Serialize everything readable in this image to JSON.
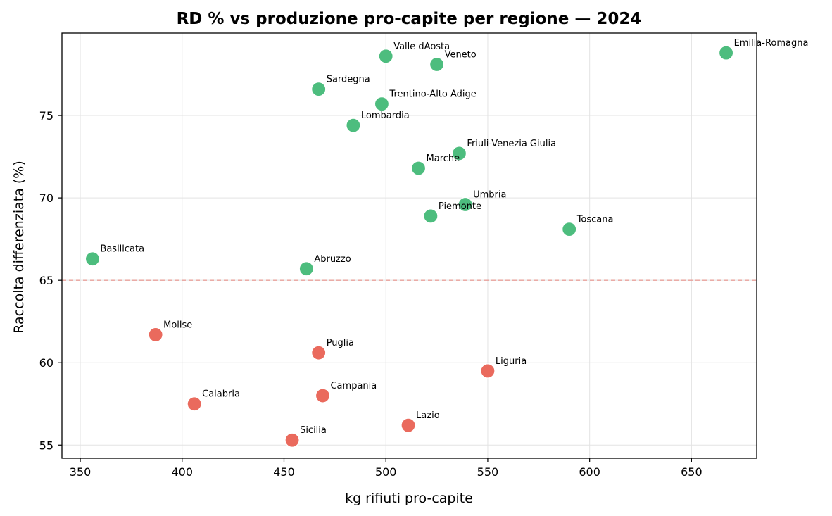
{
  "chart_data": {
    "type": "scatter",
    "title": "RD % vs produzione pro-capite per regione — 2024",
    "xlabel": "kg rifiuti pro-capite",
    "ylabel": "Raccolta differenziata (%)",
    "xlim": [
      341,
      682
    ],
    "ylim": [
      54.2,
      80.0
    ],
    "xticks": [
      350,
      400,
      450,
      500,
      550,
      600,
      650
    ],
    "yticks": [
      55,
      60,
      65,
      70,
      75
    ],
    "grid": true,
    "threshold": 65,
    "colors": {
      "above": "#4dbd7e",
      "below": "#ea6a5d",
      "threshold_line": "#e8a09a",
      "grid": "#e3e3e3"
    },
    "points": [
      {
        "name": "Emilia-Romagna",
        "x": 667,
        "y": 78.8
      },
      {
        "name": "Valle dAosta",
        "x": 500,
        "y": 78.6
      },
      {
        "name": "Veneto",
        "x": 525,
        "y": 78.1
      },
      {
        "name": "Sardegna",
        "x": 467,
        "y": 76.6
      },
      {
        "name": "Trentino-Alto Adige",
        "x": 498,
        "y": 75.7
      },
      {
        "name": "Lombardia",
        "x": 484,
        "y": 74.4
      },
      {
        "name": "Friuli-Venezia Giulia",
        "x": 536,
        "y": 72.7
      },
      {
        "name": "Marche",
        "x": 516,
        "y": 71.8
      },
      {
        "name": "Umbria",
        "x": 539,
        "y": 69.6
      },
      {
        "name": "Piemonte",
        "x": 522,
        "y": 68.9
      },
      {
        "name": "Toscana",
        "x": 590,
        "y": 68.1
      },
      {
        "name": "Basilicata",
        "x": 356,
        "y": 66.3
      },
      {
        "name": "Abruzzo",
        "x": 461,
        "y": 65.7
      },
      {
        "name": "Molise",
        "x": 387,
        "y": 61.7
      },
      {
        "name": "Puglia",
        "x": 467,
        "y": 60.6
      },
      {
        "name": "Liguria",
        "x": 550,
        "y": 59.5
      },
      {
        "name": "Campania",
        "x": 469,
        "y": 58.0
      },
      {
        "name": "Calabria",
        "x": 406,
        "y": 57.5
      },
      {
        "name": "Lazio",
        "x": 511,
        "y": 56.2
      },
      {
        "name": "Sicilia",
        "x": 454,
        "y": 55.3
      }
    ]
  }
}
